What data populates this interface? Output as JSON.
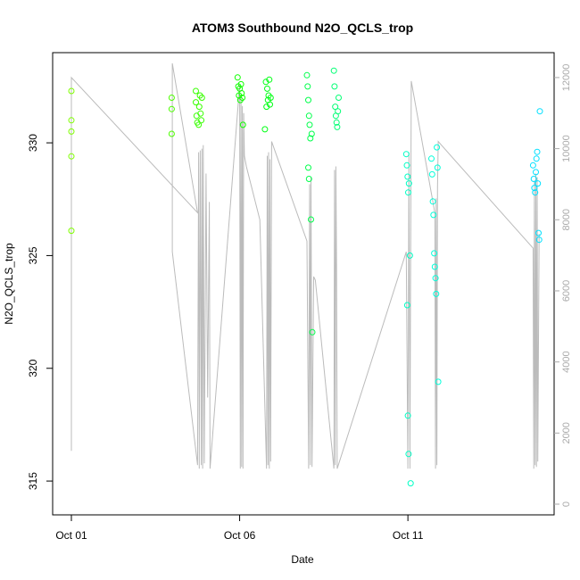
{
  "chart_data": {
    "type": "scatter",
    "title": "ATOM3 Southbound N2O_QCLS_trop",
    "xlabel": "Date",
    "ylabel": "N2O_QCLS_trop",
    "x_axis": {
      "type": "date",
      "range": [
        "2017-10-01",
        "2017-10-15"
      ],
      "ticks": [
        {
          "date": "2017-10-01",
          "label": "Oct 01"
        },
        {
          "date": "2017-10-06",
          "label": "Oct 06"
        },
        {
          "date": "2017-10-11",
          "label": "Oct 11"
        }
      ]
    },
    "y_axis": {
      "range": [
        313.5,
        334
      ],
      "ticks": [
        315,
        320,
        325,
        330
      ]
    },
    "y2_axis": {
      "color": "#aaaaaa",
      "range": [
        0,
        12600
      ],
      "ticks": [
        0,
        2000,
        4000,
        6000,
        8000,
        10000,
        12000
      ]
    },
    "grid": false,
    "legend": "none",
    "series": [
      {
        "kind": "points",
        "markers": "open-circle",
        "color_scale": [
          "#7fff00",
          "#00ff00",
          "#00ffaa",
          "#00ffff",
          "#00aaff"
        ],
        "x_start": "2017-10-01",
        "points": [
          [
            0.0,
            332.3,
            0.0
          ],
          [
            0.0,
            329.4,
            0.0
          ],
          [
            0.0,
            330.5,
            0.0
          ],
          [
            0.0,
            331.0,
            0.0
          ],
          [
            0.0,
            326.1,
            0.0
          ],
          [
            2.98,
            332.0,
            0.1
          ],
          [
            2.98,
            331.5,
            0.1
          ],
          [
            2.98,
            330.4,
            0.1
          ],
          [
            3.7,
            332.3,
            0.14
          ],
          [
            3.7,
            331.8,
            0.14
          ],
          [
            3.72,
            331.2,
            0.14
          ],
          [
            3.74,
            330.9,
            0.14
          ],
          [
            3.78,
            330.8,
            0.14
          ],
          [
            3.8,
            331.6,
            0.14
          ],
          [
            3.82,
            332.1,
            0.14
          ],
          [
            3.84,
            331.3,
            0.14
          ],
          [
            3.86,
            331.0,
            0.14
          ],
          [
            3.88,
            332.0,
            0.14
          ],
          [
            4.94,
            332.9,
            0.22
          ],
          [
            4.96,
            332.5,
            0.22
          ],
          [
            4.98,
            332.1,
            0.22
          ],
          [
            5.0,
            332.4,
            0.22
          ],
          [
            5.02,
            331.9,
            0.22
          ],
          [
            5.04,
            332.6,
            0.22
          ],
          [
            5.06,
            332.2,
            0.22
          ],
          [
            5.08,
            332.0,
            0.22
          ],
          [
            5.1,
            330.8,
            0.22
          ],
          [
            5.78,
            332.7,
            0.28
          ],
          [
            5.8,
            331.6,
            0.28
          ],
          [
            5.82,
            332.4,
            0.28
          ],
          [
            5.84,
            331.9,
            0.28
          ],
          [
            5.86,
            332.1,
            0.28
          ],
          [
            5.88,
            332.8,
            0.28
          ],
          [
            5.9,
            331.7,
            0.28
          ],
          [
            5.92,
            332.0,
            0.28
          ],
          [
            5.75,
            330.6,
            0.28
          ],
          [
            7.0,
            333.0,
            0.36
          ],
          [
            7.02,
            332.5,
            0.36
          ],
          [
            7.04,
            331.9,
            0.36
          ],
          [
            7.06,
            331.2,
            0.36
          ],
          [
            7.08,
            330.8,
            0.36
          ],
          [
            7.1,
            330.2,
            0.36
          ],
          [
            7.04,
            328.9,
            0.36
          ],
          [
            7.06,
            328.4,
            0.36
          ],
          [
            7.12,
            326.6,
            0.36
          ],
          [
            7.14,
            330.4,
            0.36
          ],
          [
            7.16,
            321.6,
            0.36
          ],
          [
            7.8,
            333.2,
            0.42
          ],
          [
            7.82,
            332.5,
            0.42
          ],
          [
            7.84,
            331.6,
            0.42
          ],
          [
            7.86,
            331.2,
            0.42
          ],
          [
            7.88,
            330.9,
            0.42
          ],
          [
            7.9,
            330.7,
            0.42
          ],
          [
            7.92,
            331.4,
            0.42
          ],
          [
            7.94,
            332.0,
            0.42
          ],
          [
            9.95,
            329.5,
            0.58
          ],
          [
            9.97,
            329.0,
            0.58
          ],
          [
            9.99,
            328.5,
            0.58
          ],
          [
            10.01,
            327.8,
            0.58
          ],
          [
            10.03,
            328.2,
            0.58
          ],
          [
            9.98,
            322.8,
            0.58
          ],
          [
            10.0,
            317.9,
            0.58
          ],
          [
            10.02,
            316.2,
            0.58
          ],
          [
            10.06,
            325.0,
            0.58
          ],
          [
            10.08,
            314.9,
            0.58
          ],
          [
            10.7,
            329.3,
            0.64
          ],
          [
            10.72,
            328.6,
            0.64
          ],
          [
            10.74,
            327.4,
            0.64
          ],
          [
            10.76,
            326.8,
            0.64
          ],
          [
            10.78,
            325.1,
            0.64
          ],
          [
            10.8,
            324.5,
            0.64
          ],
          [
            10.82,
            324.0,
            0.64
          ],
          [
            10.84,
            323.3,
            0.64
          ],
          [
            10.86,
            329.8,
            0.64
          ],
          [
            10.88,
            328.9,
            0.64
          ],
          [
            10.9,
            319.4,
            0.64
          ],
          [
            13.72,
            329.0,
            0.84
          ],
          [
            13.74,
            328.4,
            0.84
          ],
          [
            13.76,
            328.0,
            0.84
          ],
          [
            13.78,
            327.8,
            0.84
          ],
          [
            13.8,
            328.7,
            0.84
          ],
          [
            13.82,
            329.3,
            0.84
          ],
          [
            13.84,
            329.6,
            0.84
          ],
          [
            13.86,
            328.2,
            0.84
          ],
          [
            13.88,
            326.0,
            0.84
          ],
          [
            13.9,
            325.7,
            0.84
          ],
          [
            13.92,
            331.4,
            0.84
          ]
        ]
      },
      {
        "kind": "line",
        "axis": "y2",
        "color": "#bbbbbb",
        "x_start": "2017-10-01",
        "points": [
          [
            0.0,
            1500
          ],
          [
            0.0,
            12000
          ],
          [
            3.75,
            8200
          ],
          [
            3.0,
            12400
          ],
          [
            3.0,
            7100
          ],
          [
            3.75,
            1100
          ],
          [
            3.78,
            9900
          ],
          [
            3.8,
            1000
          ],
          [
            3.83,
            9950
          ],
          [
            3.86,
            1100
          ],
          [
            3.88,
            10000
          ],
          [
            3.9,
            1000
          ],
          [
            3.92,
            10100
          ],
          [
            3.95,
            1150
          ],
          [
            4.0,
            9300
          ],
          [
            4.05,
            3000
          ],
          [
            4.1,
            8500
          ],
          [
            4.12,
            1000
          ],
          [
            5.0,
            11800
          ],
          [
            5.02,
            1000
          ],
          [
            5.04,
            11500
          ],
          [
            5.06,
            1050
          ],
          [
            5.08,
            11200
          ],
          [
            5.1,
            1000
          ],
          [
            5.12,
            11000
          ],
          [
            5.14,
            9800
          ],
          [
            5.2,
            9500
          ],
          [
            5.6,
            8000
          ],
          [
            5.8,
            1000
          ],
          [
            5.82,
            9800
          ],
          [
            5.84,
            1100
          ],
          [
            5.86,
            9900
          ],
          [
            5.88,
            1000
          ],
          [
            5.9,
            9700
          ],
          [
            5.92,
            1200
          ],
          [
            5.95,
            10200
          ],
          [
            7.0,
            7400
          ],
          [
            7.05,
            1000
          ],
          [
            7.08,
            9000
          ],
          [
            7.1,
            1100
          ],
          [
            7.12,
            9200
          ],
          [
            7.15,
            1050
          ],
          [
            7.2,
            6400
          ],
          [
            7.25,
            6300
          ],
          [
            7.8,
            1000
          ],
          [
            7.82,
            9400
          ],
          [
            7.84,
            1100
          ],
          [
            7.86,
            9500
          ],
          [
            7.88,
            6600
          ],
          [
            7.9,
            1000
          ],
          [
            9.95,
            7100
          ],
          [
            10.0,
            1000
          ],
          [
            10.03,
            9900
          ],
          [
            10.06,
            1000
          ],
          [
            10.1,
            11900
          ],
          [
            10.8,
            8200
          ],
          [
            10.82,
            1000
          ],
          [
            10.84,
            8600
          ],
          [
            10.86,
            1100
          ],
          [
            10.88,
            8900
          ],
          [
            10.9,
            10200
          ],
          [
            13.72,
            7200
          ],
          [
            13.74,
            1000
          ],
          [
            13.76,
            9100
          ],
          [
            13.78,
            1100
          ],
          [
            13.8,
            9300
          ],
          [
            13.82,
            1050
          ],
          [
            13.84,
            9200
          ],
          [
            13.86,
            1200
          ],
          [
            13.9,
            7600
          ]
        ]
      }
    ]
  }
}
